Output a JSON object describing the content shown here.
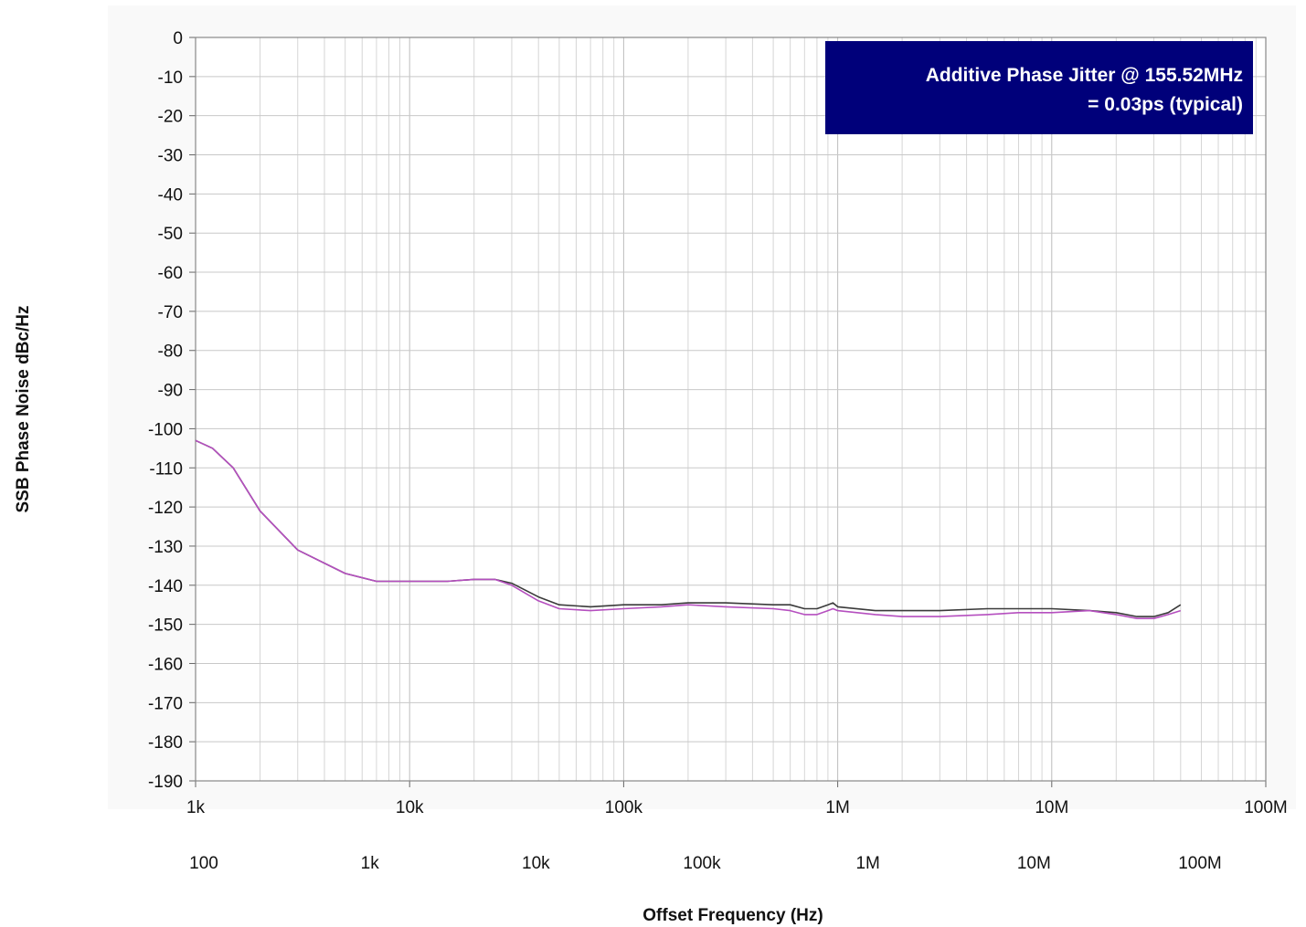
{
  "chart_data": {
    "type": "line",
    "title": "",
    "xlabel": "Offset Frequency (Hz)",
    "ylabel": "SSB Phase Noise   dBc/Hz",
    "x_scale": "log",
    "xlim": [
      1000,
      100000000
    ],
    "ylim": [
      -190,
      0
    ],
    "yticks": [
      0,
      -10,
      -20,
      -30,
      -40,
      -50,
      -60,
      -70,
      -80,
      -90,
      -100,
      -110,
      -120,
      -130,
      -140,
      -150,
      -160,
      -170,
      -180,
      -190
    ],
    "xtick_labels": [
      "1k",
      "10k",
      "100k",
      "1M",
      "10M",
      "100M"
    ],
    "xtick_values": [
      1000,
      10000,
      100000,
      1000000,
      10000000,
      100000000
    ],
    "secondary_xtick_labels": [
      "100",
      "1k",
      "10k",
      "100k",
      "1M",
      "10M",
      "100M"
    ],
    "grid": true,
    "annotation": {
      "lines": [
        "Additive Phase Jitter @ 155.52MHz",
        "= 0.03ps (typical)"
      ],
      "bg_color": "#00007a",
      "text_color": "#ffffff",
      "placement": "top-right"
    },
    "series": [
      {
        "color": "#3a3a3a",
        "x": [
          1000,
          1200,
          1500,
          2000,
          3000,
          5000,
          7000,
          10000,
          15000,
          20000,
          25000,
          30000,
          40000,
          50000,
          70000,
          100000,
          150000,
          200000,
          300000,
          500000,
          600000,
          700000,
          800000,
          900000,
          950000,
          1000000,
          1500000,
          2000000,
          3000000,
          5000000,
          7000000,
          10000000,
          15000000,
          20000000,
          25000000,
          30000000,
          35000000,
          40000000
        ],
        "y": [
          -103,
          -105,
          -110,
          -121,
          -131,
          -137,
          -139,
          -139,
          -139,
          -138.5,
          -138.5,
          -139.5,
          -143,
          -145,
          -145.5,
          -145,
          -145,
          -144.5,
          -144.5,
          -145,
          -145,
          -146,
          -146,
          -145,
          -144.5,
          -145.5,
          -146.5,
          -146.5,
          -146.5,
          -146,
          -146,
          -146,
          -146.5,
          -147,
          -148,
          -148,
          -147,
          -145
        ]
      },
      {
        "color": "#b54fbf",
        "x": [
          1000,
          1200,
          1500,
          2000,
          3000,
          5000,
          7000,
          10000,
          15000,
          20000,
          25000,
          30000,
          40000,
          50000,
          70000,
          100000,
          150000,
          200000,
          300000,
          500000,
          600000,
          700000,
          800000,
          900000,
          950000,
          1000000,
          1500000,
          2000000,
          3000000,
          5000000,
          7000000,
          10000000,
          15000000,
          20000000,
          25000000,
          30000000,
          35000000,
          40000000
        ],
        "y": [
          -103,
          -105,
          -110,
          -121,
          -131,
          -137,
          -139,
          -139,
          -139,
          -138.5,
          -138.5,
          -140,
          -144,
          -146,
          -146.5,
          -146,
          -145.5,
          -145,
          -145.5,
          -146,
          -146.5,
          -147.5,
          -147.5,
          -146.5,
          -146,
          -146.5,
          -147.5,
          -148,
          -148,
          -147.5,
          -147,
          -147,
          -146.5,
          -147.5,
          -148.5,
          -148.5,
          -147.5,
          -146.5
        ]
      }
    ]
  }
}
